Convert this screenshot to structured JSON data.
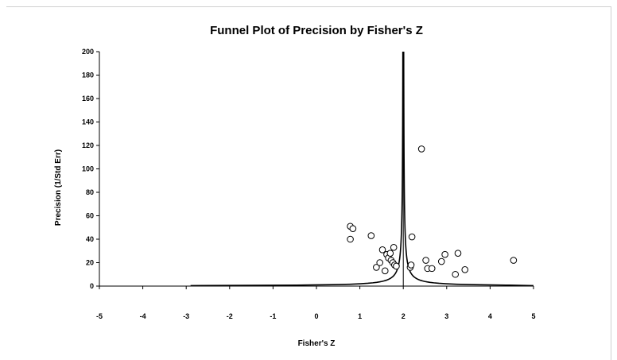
{
  "chart_data": {
    "type": "scatter",
    "title": "Funnel Plot of Precision by Fisher's Z",
    "xlabel": "Fisher's Z",
    "ylabel": "Precision (1/Std Err)",
    "xlim": [
      -5,
      5
    ],
    "ylim": [
      0,
      200
    ],
    "xticks": [
      "-5",
      "-4",
      "-3",
      "-2",
      "-1",
      "0",
      "1",
      "2",
      "3",
      "4",
      "5"
    ],
    "yticks": [
      "0",
      "20",
      "40",
      "60",
      "80",
      "100",
      "120",
      "140",
      "160",
      "180",
      "200"
    ],
    "grid": false,
    "legend": "none",
    "summary_effect": 2.0,
    "funnel_z": 1.96,
    "points": [
      {
        "x": 0.78,
        "y": 51
      },
      {
        "x": 0.84,
        "y": 49
      },
      {
        "x": 0.78,
        "y": 40
      },
      {
        "x": 1.26,
        "y": 43
      },
      {
        "x": 1.38,
        "y": 16
      },
      {
        "x": 1.46,
        "y": 20
      },
      {
        "x": 1.52,
        "y": 31
      },
      {
        "x": 1.58,
        "y": 13
      },
      {
        "x": 1.62,
        "y": 27
      },
      {
        "x": 1.66,
        "y": 24
      },
      {
        "x": 1.7,
        "y": 28
      },
      {
        "x": 1.72,
        "y": 22
      },
      {
        "x": 1.76,
        "y": 20
      },
      {
        "x": 1.78,
        "y": 33
      },
      {
        "x": 1.8,
        "y": 18
      },
      {
        "x": 1.84,
        "y": 17
      },
      {
        "x": 2.16,
        "y": 16
      },
      {
        "x": 2.18,
        "y": 18
      },
      {
        "x": 2.2,
        "y": 42
      },
      {
        "x": 2.42,
        "y": 117
      },
      {
        "x": 2.52,
        "y": 22
      },
      {
        "x": 2.56,
        "y": 15
      },
      {
        "x": 2.66,
        "y": 15
      },
      {
        "x": 2.88,
        "y": 21
      },
      {
        "x": 2.96,
        "y": 27
      },
      {
        "x": 3.2,
        "y": 10
      },
      {
        "x": 3.26,
        "y": 28
      },
      {
        "x": 3.42,
        "y": 14
      },
      {
        "x": 4.54,
        "y": 22
      }
    ]
  }
}
